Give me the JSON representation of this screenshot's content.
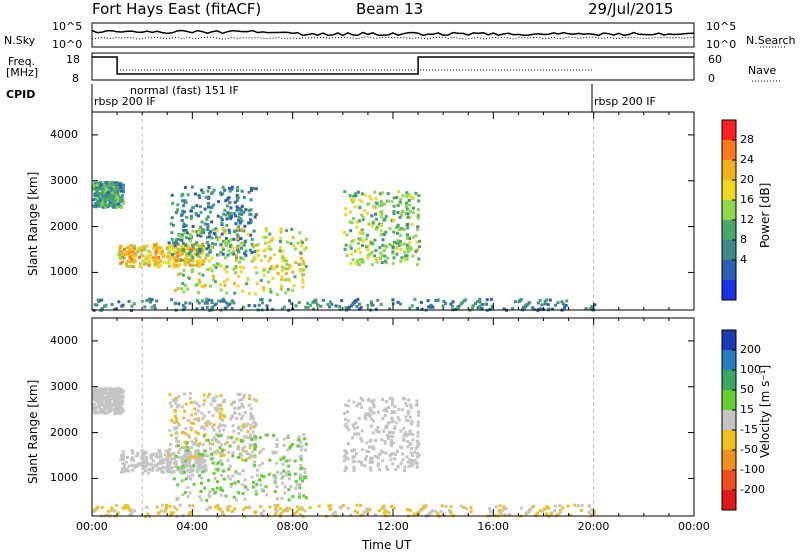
{
  "header": {
    "site": "Fort Hays East (fitACF)",
    "beam": "Beam 13",
    "date": "29/Jul/2015"
  },
  "panels": {
    "nsky_label": "N.Sky",
    "nsky_ticks": [
      "10^5",
      "10^0"
    ],
    "nsearch_label": "N.Search",
    "nsearch_ticks": [
      "10^5",
      "10^0"
    ],
    "freq_label_line1": "Freq.",
    "freq_label_line2": "[MHz]",
    "freq_ticks": [
      "18",
      "8"
    ],
    "nave_label": "Nave",
    "nave_ticks": [
      "60",
      "0"
    ],
    "cpid_label": "CPID",
    "cpid_segments": [
      "rbsp 200 IF",
      "normal (fast) 151 IF",
      "rbsp 200 IF"
    ]
  },
  "colorbars": {
    "power_label": "Power [dB]",
    "power_ticks": [
      "28",
      "24",
      "20",
      "16",
      "12",
      "8",
      "4"
    ],
    "power_colors": [
      "#ff2020",
      "#ff7a1a",
      "#f5b01e",
      "#f0d820",
      "#8ed84c",
      "#47a86a",
      "#3e8a8a",
      "#2a5fb5",
      "#1a2fe6"
    ],
    "velocity_label": "Velocity [m s⁻¹]",
    "velocity_ticks": [
      "200",
      "100",
      "50",
      "15",
      "-15",
      "-50",
      "-100",
      "-200"
    ],
    "velocity_colors": [
      "#1a3ab8",
      "#2a7cc0",
      "#3aa860",
      "#62d030",
      "#c4c4c4",
      "#f0c020",
      "#f09020",
      "#f05020",
      "#e01818"
    ]
  },
  "x_ticks": [
    "00:00",
    "04:00",
    "08:00",
    "12:00",
    "16:00",
    "20:00",
    "00:00"
  ],
  "y_ticks": [
    "4000",
    "3000",
    "2000",
    "1000"
  ],
  "ylabel": "Slant Range [km]",
  "xlabel": "Time UT",
  "chart_data": [
    {
      "type": "heatmap",
      "title": "Power",
      "xlabel": "Time UT",
      "ylabel": "Slant Range [km]",
      "xlim": [
        0,
        24
      ],
      "ylim": [
        180,
        4500
      ],
      "colorbar": "Power [dB]",
      "colorbar_range": [
        0,
        32
      ],
      "regions": [
        {
          "t_start": 0.0,
          "t_end": 1.2,
          "range_km": [
            2450,
            3000
          ],
          "value_db": 10
        },
        {
          "t_start": 1.0,
          "t_end": 4.5,
          "range_km": [
            1150,
            1650
          ],
          "value_db": 22
        },
        {
          "t_start": 3.0,
          "t_end": 6.5,
          "range_km": [
            1400,
            2900
          ],
          "value_db": 8
        },
        {
          "t_start": 3.2,
          "t_end": 8.5,
          "range_km": [
            550,
            2000
          ],
          "value_db": 18
        },
        {
          "t_start": 10.0,
          "t_end": 13.0,
          "range_km": [
            1200,
            2800
          ],
          "value_db": 15
        },
        {
          "t_start": 0.0,
          "t_end": 20.0,
          "range_km": [
            200,
            450
          ],
          "value_db": 8
        }
      ]
    },
    {
      "type": "heatmap",
      "title": "Velocity",
      "xlabel": "Time UT",
      "ylabel": "Slant Range [km]",
      "xlim": [
        0,
        24
      ],
      "ylim": [
        180,
        4500
      ],
      "colorbar": "Velocity [m s⁻¹]",
      "colorbar_range": [
        -250,
        250
      ],
      "regions": [
        {
          "t_start": 0.0,
          "t_end": 1.2,
          "range_km": [
            2450,
            3000
          ],
          "value_ms": 0
        },
        {
          "t_start": 1.0,
          "t_end": 4.5,
          "range_km": [
            1150,
            1650
          ],
          "value_ms": 0
        },
        {
          "t_start": 3.0,
          "t_end": 6.5,
          "range_km": [
            1400,
            2900
          ],
          "value_ms": -20
        },
        {
          "t_start": 3.2,
          "t_end": 8.5,
          "range_km": [
            550,
            2000
          ],
          "value_ms": 30
        },
        {
          "t_start": 10.0,
          "t_end": 13.0,
          "range_km": [
            1200,
            2800
          ],
          "value_ms": 0
        },
        {
          "t_start": 0.0,
          "t_end": 20.0,
          "range_km": [
            200,
            450
          ],
          "value_ms": -40
        }
      ]
    }
  ]
}
